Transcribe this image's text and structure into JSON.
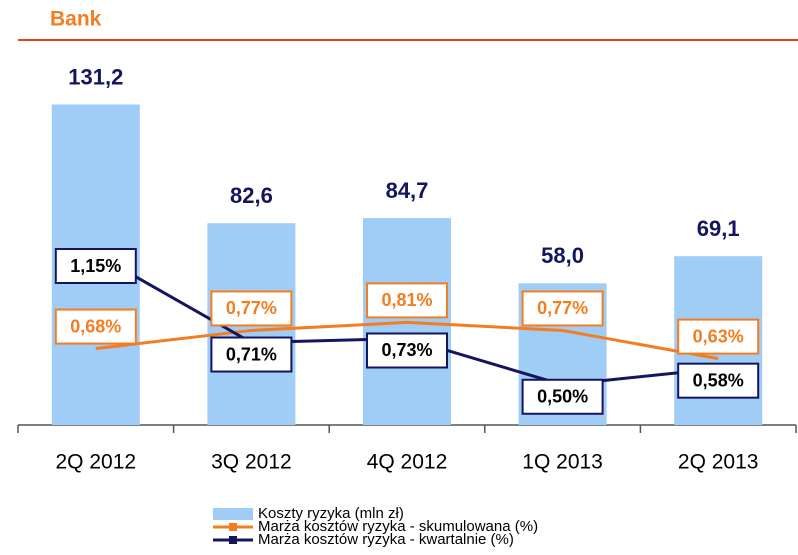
{
  "chart_data": {
    "type": "bar",
    "title": "Bank",
    "categories": [
      "2Q 2012",
      "3Q 2012",
      "4Q 2012",
      "1Q 2013",
      "2Q 2013"
    ],
    "series": [
      {
        "name": "Koszty ryzyka (mln zł)",
        "type": "bar",
        "color": "#9fcdf5",
        "values": [
          131.2,
          82.6,
          84.7,
          58.0,
          69.1
        ],
        "value_labels": [
          "131,2",
          "82,6",
          "84,7",
          "58,0",
          "69,1"
        ]
      },
      {
        "name": "Marża kosztów ryzyka - skumulowana (%)",
        "type": "line",
        "axis": "y2",
        "color": "#f47d20",
        "values": [
          0.68,
          0.77,
          0.81,
          0.77,
          0.63
        ],
        "value_labels": [
          "0,68%",
          "0,77%",
          "0,81%",
          "0,77%",
          "0,63%"
        ]
      },
      {
        "name": "Marża kosztów ryzyka - kwartalnie (%)",
        "type": "line",
        "axis": "y2",
        "color": "#14145f",
        "values": [
          1.15,
          0.71,
          0.73,
          0.5,
          0.58
        ],
        "value_labels": [
          "1,15%",
          "0,71%",
          "0,73%",
          "0,50%",
          "0,58%"
        ]
      }
    ],
    "ylim": [
      0,
      140
    ],
    "y2lim": [
      0.3,
      2.0
    ]
  }
}
